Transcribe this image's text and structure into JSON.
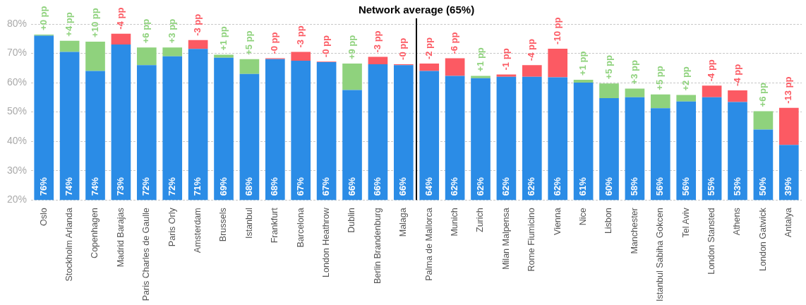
{
  "chart_data": {
    "type": "bar",
    "stacked": true,
    "grid": "y",
    "legend": false,
    "categories": [
      "Oslo",
      "Stockholm Arlanda",
      "Copenhagen",
      "Madrid Barajas",
      "Paris Charles de Gaulle",
      "Paris Orly",
      "Amsterdam",
      "Brussels",
      "Istanbul",
      "Frankfurt",
      "Barcelona",
      "London Heathrow",
      "Dublin",
      "Berlin Brandenburg",
      "Malaga",
      "Palma de Mallorca",
      "Munich",
      "Zurich",
      "Milan Malpensa",
      "Rome Fiumicino",
      "Vienna",
      "Nice",
      "Lisbon",
      "Manchester",
      "Istanbul Sabiha Gokcen",
      "Tel Aviv",
      "London Stansted",
      "Athens",
      "London Gatwick",
      "Antalya"
    ],
    "ylim": [
      20,
      80
    ],
    "yticks": [
      {
        "value": 20,
        "label": "20%"
      },
      {
        "value": 30,
        "label": "30%"
      },
      {
        "value": 40,
        "label": "40%"
      },
      {
        "value": 50,
        "label": "50%"
      },
      {
        "value": 60,
        "label": "60%"
      },
      {
        "value": 70,
        "label": "70%"
      },
      {
        "value": 80,
        "label": "80%"
      }
    ],
    "series": [
      {
        "color": "#2b8ce6",
        "values": [
          76,
          70.5,
          64,
          73,
          66,
          69,
          71.5,
          68.5,
          63,
          68,
          67.5,
          67,
          57.5,
          66.3,
          66,
          64,
          62.3,
          61.5,
          62,
          62,
          61.8,
          60,
          54.7,
          55,
          51.3,
          53.6,
          55,
          53.4,
          44,
          38.8
        ]
      },
      {
        "color": "#8fd27d",
        "base": [
          76,
          70.5,
          64,
          null,
          66,
          69,
          null,
          68.5,
          63,
          null,
          null,
          null,
          57.5,
          null,
          null,
          null,
          null,
          61.5,
          null,
          null,
          null,
          60,
          54.7,
          55,
          51.3,
          53.6,
          null,
          null,
          44,
          null
        ],
        "values": [
          0.4,
          3.8,
          10,
          null,
          6,
          3,
          null,
          1,
          5,
          null,
          null,
          null,
          9,
          null,
          null,
          null,
          null,
          0.8,
          null,
          null,
          null,
          1,
          5,
          3,
          4.7,
          2.2,
          null,
          null,
          6.3,
          null
        ]
      },
      {
        "color": "#fc5a63",
        "base": [
          null,
          null,
          null,
          73,
          null,
          null,
          71.5,
          null,
          null,
          68,
          67.5,
          67,
          null,
          66.3,
          66,
          64,
          62.3,
          null,
          62,
          62,
          61.8,
          null,
          null,
          null,
          null,
          null,
          55,
          53.4,
          null,
          38.8
        ],
        "values": [
          null,
          null,
          null,
          3.7,
          null,
          null,
          3,
          null,
          null,
          0.3,
          3,
          0.2,
          null,
          2.5,
          0.3,
          2.5,
          6,
          null,
          0.8,
          4,
          9.8,
          null,
          null,
          null,
          null,
          null,
          4,
          4,
          null,
          12.6
        ]
      }
    ],
    "annotations": [
      "+0 pp",
      "+4 pp",
      "+10 pp",
      "-4 pp",
      "+6 pp",
      "+3 pp",
      "-3 pp",
      "+1 pp",
      "+5 pp",
      "-0 pp",
      "-3 pp",
      "-0 pp",
      "+9 pp",
      "-3 pp",
      "-0 pp",
      "-2 pp",
      "-6 pp",
      "+1 pp",
      "-1 pp",
      "-4 pp",
      "-10 pp",
      "+1 pp",
      "+5 pp",
      "+3 pp",
      "+5 pp",
      "+2 pp",
      "-4 pp",
      "-4 pp",
      "+6 pp",
      "-13 pp",
      "76%",
      "74%",
      "74%",
      "73%",
      "72%",
      "72%",
      "71%",
      "69%",
      "68%",
      "68%",
      "67%",
      "67%",
      "66%",
      "66%",
      "66%",
      "64%",
      "62%",
      "62%",
      "62%",
      "62%",
      "62%",
      "61%",
      "60%",
      "58%",
      "56%",
      "56%",
      "55%",
      "53%",
      "50%",
      "39%"
    ],
    "ref_lines": [
      {
        "axis": "x",
        "value": "Malaga",
        "label": "Network average (65%)",
        "color": "#000000"
      }
    ]
  }
}
